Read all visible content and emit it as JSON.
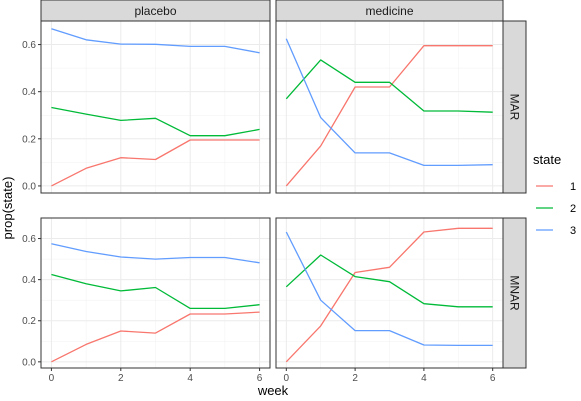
{
  "chart_data": {
    "type": "line",
    "xlabel": "week",
    "ylabel": "prop(state)",
    "columns": [
      "placebo",
      "medicine"
    ],
    "rows": [
      "MAR",
      "MNAR"
    ],
    "x_ticks": [
      0,
      2,
      4,
      6
    ],
    "y_ticks": [
      "0.0",
      "0.2",
      "0.4",
      "0.6"
    ],
    "xlim": [
      -0.3,
      6.3
    ],
    "ylim": [
      -0.03,
      0.7
    ],
    "grid": true,
    "legend": {
      "title": "state",
      "placement": "right",
      "entries": [
        {
          "label": "1",
          "color": "#F8766D"
        },
        {
          "label": "2",
          "color": "#00BA38"
        },
        {
          "label": "3",
          "color": "#619CFF"
        }
      ]
    },
    "panels": [
      {
        "column": "placebo",
        "row": "MAR",
        "series": [
          {
            "state": "1",
            "x": [
              0,
              1,
              2,
              3,
              4,
              5,
              6
            ],
            "y": [
              0.0,
              0.075,
              0.12,
              0.112,
              0.195,
              0.195,
              0.195
            ]
          },
          {
            "state": "2",
            "x": [
              0,
              1,
              2,
              3,
              4,
              5,
              6
            ],
            "y": [
              0.333,
              0.305,
              0.278,
              0.287,
              0.213,
              0.213,
              0.24
            ]
          },
          {
            "state": "3",
            "x": [
              0,
              1,
              2,
              3,
              4,
              5,
              6
            ],
            "y": [
              0.667,
              0.62,
              0.602,
              0.601,
              0.592,
              0.592,
              0.565
            ]
          }
        ]
      },
      {
        "column": "medicine",
        "row": "MAR",
        "series": [
          {
            "state": "1",
            "x": [
              0,
              1,
              2,
              3,
              4,
              5,
              6
            ],
            "y": [
              0.0,
              0.17,
              0.42,
              0.42,
              0.595,
              0.595,
              0.595
            ]
          },
          {
            "state": "2",
            "x": [
              0,
              1,
              2,
              3,
              4,
              5,
              6
            ],
            "y": [
              0.37,
              0.535,
              0.44,
              0.44,
              0.318,
              0.318,
              0.313
            ]
          },
          {
            "state": "3",
            "x": [
              0,
              1,
              2,
              3,
              4,
              5,
              6
            ],
            "y": [
              0.625,
              0.29,
              0.14,
              0.14,
              0.087,
              0.087,
              0.09
            ]
          }
        ]
      },
      {
        "column": "placebo",
        "row": "MNAR",
        "series": [
          {
            "state": "1",
            "x": [
              0,
              1,
              2,
              3,
              4,
              5,
              6
            ],
            "y": [
              0.0,
              0.085,
              0.15,
              0.14,
              0.233,
              0.233,
              0.242
            ]
          },
          {
            "state": "2",
            "x": [
              0,
              1,
              2,
              3,
              4,
              5,
              6
            ],
            "y": [
              0.425,
              0.38,
              0.345,
              0.362,
              0.26,
              0.26,
              0.278
            ]
          },
          {
            "state": "3",
            "x": [
              0,
              1,
              2,
              3,
              4,
              5,
              6
            ],
            "y": [
              0.575,
              0.537,
              0.51,
              0.5,
              0.508,
              0.508,
              0.482
            ]
          }
        ]
      },
      {
        "column": "medicine",
        "row": "MNAR",
        "series": [
          {
            "state": "1",
            "x": [
              0,
              1,
              2,
              3,
              4,
              5,
              6
            ],
            "y": [
              0.0,
              0.175,
              0.435,
              0.46,
              0.632,
              0.65,
              0.65
            ]
          },
          {
            "state": "2",
            "x": [
              0,
              1,
              2,
              3,
              4,
              5,
              6
            ],
            "y": [
              0.365,
              0.52,
              0.415,
              0.39,
              0.283,
              0.268,
              0.268
            ]
          },
          {
            "state": "3",
            "x": [
              0,
              1,
              2,
              3,
              4,
              5,
              6
            ],
            "y": [
              0.632,
              0.3,
              0.152,
              0.152,
              0.082,
              0.08,
              0.08
            ]
          }
        ]
      }
    ]
  }
}
